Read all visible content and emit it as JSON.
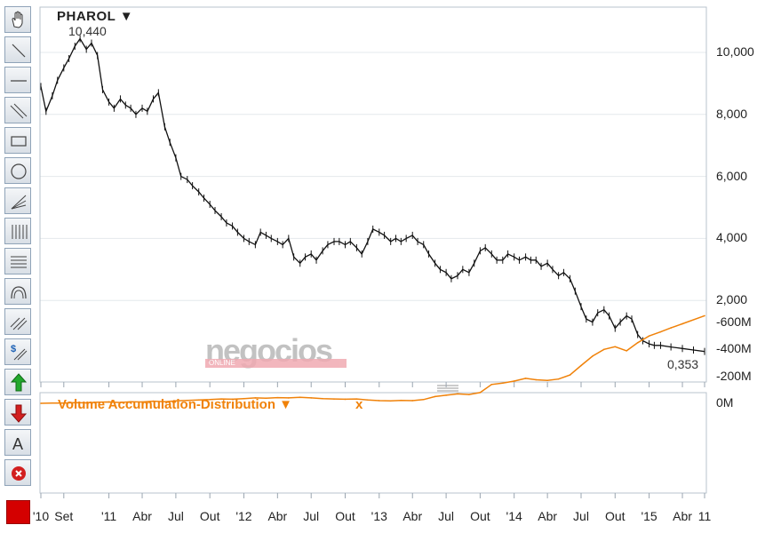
{
  "toolbar": {
    "tools": [
      {
        "name": "hand-tool",
        "icon": "hand-icon"
      },
      {
        "name": "line-tool",
        "icon": "diagonal-line-icon"
      },
      {
        "name": "horizontal-line-tool",
        "icon": "horizontal-line-icon"
      },
      {
        "name": "channel-tool",
        "icon": "parallel-lines-icon"
      },
      {
        "name": "rectangle-tool",
        "icon": "rectangle-icon"
      },
      {
        "name": "circle-tool",
        "icon": "circle-icon"
      },
      {
        "name": "fan-tool",
        "icon": "fan-lines-icon"
      },
      {
        "name": "vertical-grid-tool",
        "icon": "vertical-grid-icon"
      },
      {
        "name": "horizontal-grid-tool",
        "icon": "horizontal-grid-icon"
      },
      {
        "name": "arc-tool",
        "icon": "arc-icon"
      },
      {
        "name": "gann-tool",
        "icon": "diagonal-grid-icon"
      },
      {
        "name": "speed-lines-tool",
        "icon": "dollar-lines-icon"
      },
      {
        "name": "buy-arrow-tool",
        "icon": "green-up-arrow-icon"
      },
      {
        "name": "sell-arrow-tool",
        "icon": "red-down-arrow-icon"
      },
      {
        "name": "text-tool",
        "icon": "letter-a-icon",
        "label": "A"
      },
      {
        "name": "delete-tool",
        "icon": "delete-circle-icon"
      }
    ],
    "color_swatch": "#d40000"
  },
  "header": {
    "symbol": "PHAROL ▼",
    "high_label": "10,440",
    "low_label": "0,353"
  },
  "indicator": {
    "name": "Volume Accumulation-Distribution ▼",
    "close": "x"
  },
  "watermark": {
    "brand": "negocios",
    "sub": "ONLINE"
  },
  "chart_data": [
    {
      "type": "line",
      "series": [
        {
          "values": [
            {
              "x": "2010-07-01",
              "y": 8.9
            },
            {
              "x": "2010-07-15",
              "y": 8.1
            },
            {
              "x": "2010-08-01",
              "y": 8.6
            },
            {
              "x": "2010-08-15",
              "y": 9.1
            },
            {
              "x": "2010-09-01",
              "y": 9.5
            },
            {
              "x": "2010-09-15",
              "y": 9.8
            },
            {
              "x": "2010-10-01",
              "y": 10.2
            },
            {
              "x": "2010-10-15",
              "y": 10.44
            },
            {
              "x": "2010-11-01",
              "y": 10.1
            },
            {
              "x": "2010-11-15",
              "y": 10.3
            },
            {
              "x": "2010-12-01",
              "y": 9.9
            },
            {
              "x": "2010-12-15",
              "y": 8.8
            },
            {
              "x": "2011-01-01",
              "y": 8.4
            },
            {
              "x": "2011-01-15",
              "y": 8.2
            },
            {
              "x": "2011-02-01",
              "y": 8.5
            },
            {
              "x": "2011-02-15",
              "y": 8.3
            },
            {
              "x": "2011-03-01",
              "y": 8.2
            },
            {
              "x": "2011-03-15",
              "y": 8.0
            },
            {
              "x": "2011-04-01",
              "y": 8.2
            },
            {
              "x": "2011-04-15",
              "y": 8.1
            },
            {
              "x": "2011-05-01",
              "y": 8.5
            },
            {
              "x": "2011-05-15",
              "y": 8.7
            },
            {
              "x": "2011-06-01",
              "y": 7.6
            },
            {
              "x": "2011-06-15",
              "y": 7.1
            },
            {
              "x": "2011-07-01",
              "y": 6.6
            },
            {
              "x": "2011-07-15",
              "y": 6.0
            },
            {
              "x": "2011-08-01",
              "y": 5.9
            },
            {
              "x": "2011-08-15",
              "y": 5.7
            },
            {
              "x": "2011-09-01",
              "y": 5.5
            },
            {
              "x": "2011-09-15",
              "y": 5.3
            },
            {
              "x": "2011-10-01",
              "y": 5.1
            },
            {
              "x": "2011-10-15",
              "y": 4.9
            },
            {
              "x": "2011-11-01",
              "y": 4.7
            },
            {
              "x": "2011-11-15",
              "y": 4.5
            },
            {
              "x": "2011-12-01",
              "y": 4.4
            },
            {
              "x": "2011-12-15",
              "y": 4.2
            },
            {
              "x": "2012-01-01",
              "y": 4.0
            },
            {
              "x": "2012-01-15",
              "y": 3.9
            },
            {
              "x": "2012-02-01",
              "y": 3.8
            },
            {
              "x": "2012-02-15",
              "y": 4.2
            },
            {
              "x": "2012-03-01",
              "y": 4.1
            },
            {
              "x": "2012-03-15",
              "y": 4.0
            },
            {
              "x": "2012-04-01",
              "y": 3.9
            },
            {
              "x": "2012-04-15",
              "y": 3.8
            },
            {
              "x": "2012-05-01",
              "y": 4.0
            },
            {
              "x": "2012-05-15",
              "y": 3.4
            },
            {
              "x": "2012-06-01",
              "y": 3.2
            },
            {
              "x": "2012-06-15",
              "y": 3.4
            },
            {
              "x": "2012-07-01",
              "y": 3.5
            },
            {
              "x": "2012-07-15",
              "y": 3.3
            },
            {
              "x": "2012-08-01",
              "y": 3.6
            },
            {
              "x": "2012-08-15",
              "y": 3.8
            },
            {
              "x": "2012-09-01",
              "y": 3.9
            },
            {
              "x": "2012-09-15",
              "y": 3.9
            },
            {
              "x": "2012-10-01",
              "y": 3.8
            },
            {
              "x": "2012-10-15",
              "y": 3.9
            },
            {
              "x": "2012-11-01",
              "y": 3.7
            },
            {
              "x": "2012-11-15",
              "y": 3.5
            },
            {
              "x": "2012-12-01",
              "y": 3.9
            },
            {
              "x": "2012-12-15",
              "y": 4.3
            },
            {
              "x": "2013-01-01",
              "y": 4.2
            },
            {
              "x": "2013-01-15",
              "y": 4.1
            },
            {
              "x": "2013-02-01",
              "y": 3.9
            },
            {
              "x": "2013-02-15",
              "y": 4.0
            },
            {
              "x": "2013-03-01",
              "y": 3.9
            },
            {
              "x": "2013-03-15",
              "y": 4.0
            },
            {
              "x": "2013-04-01",
              "y": 4.1
            },
            {
              "x": "2013-04-15",
              "y": 3.9
            },
            {
              "x": "2013-05-01",
              "y": 3.8
            },
            {
              "x": "2013-05-15",
              "y": 3.5
            },
            {
              "x": "2013-06-01",
              "y": 3.2
            },
            {
              "x": "2013-06-15",
              "y": 3.0
            },
            {
              "x": "2013-07-01",
              "y": 2.9
            },
            {
              "x": "2013-07-15",
              "y": 2.7
            },
            {
              "x": "2013-08-01",
              "y": 2.8
            },
            {
              "x": "2013-08-15",
              "y": 3.0
            },
            {
              "x": "2013-09-01",
              "y": 2.9
            },
            {
              "x": "2013-09-15",
              "y": 3.2
            },
            {
              "x": "2013-10-01",
              "y": 3.6
            },
            {
              "x": "2013-10-15",
              "y": 3.7
            },
            {
              "x": "2013-11-01",
              "y": 3.5
            },
            {
              "x": "2013-11-15",
              "y": 3.3
            },
            {
              "x": "2013-12-01",
              "y": 3.3
            },
            {
              "x": "2013-12-15",
              "y": 3.5
            },
            {
              "x": "2014-01-01",
              "y": 3.4
            },
            {
              "x": "2014-01-15",
              "y": 3.3
            },
            {
              "x": "2014-02-01",
              "y": 3.4
            },
            {
              "x": "2014-02-15",
              "y": 3.3
            },
            {
              "x": "2014-03-01",
              "y": 3.3
            },
            {
              "x": "2014-03-15",
              "y": 3.1
            },
            {
              "x": "2014-04-01",
              "y": 3.2
            },
            {
              "x": "2014-04-15",
              "y": 3.0
            },
            {
              "x": "2014-05-01",
              "y": 2.8
            },
            {
              "x": "2014-05-15",
              "y": 2.9
            },
            {
              "x": "2014-06-01",
              "y": 2.7
            },
            {
              "x": "2014-06-15",
              "y": 2.3
            },
            {
              "x": "2014-07-01",
              "y": 1.8
            },
            {
              "x": "2014-07-15",
              "y": 1.4
            },
            {
              "x": "2014-08-01",
              "y": 1.3
            },
            {
              "x": "2014-08-15",
              "y": 1.6
            },
            {
              "x": "2014-09-01",
              "y": 1.7
            },
            {
              "x": "2014-09-15",
              "y": 1.5
            },
            {
              "x": "2014-10-01",
              "y": 1.1
            },
            {
              "x": "2014-10-15",
              "y": 1.3
            },
            {
              "x": "2014-11-01",
              "y": 1.5
            },
            {
              "x": "2014-11-15",
              "y": 1.4
            },
            {
              "x": "2014-12-01",
              "y": 0.9
            },
            {
              "x": "2014-12-15",
              "y": 0.7
            },
            {
              "x": "2015-01-01",
              "y": 0.6
            },
            {
              "x": "2015-01-15",
              "y": 0.55
            },
            {
              "x": "2015-02-01",
              "y": 0.55
            },
            {
              "x": "2015-03-01",
              "y": 0.5
            },
            {
              "x": "2015-04-01",
              "y": 0.45
            },
            {
              "x": "2015-05-01",
              "y": 0.4
            },
            {
              "x": "2015-05-31",
              "y": 0.353
            }
          ]
        }
      ],
      "yticks": [
        {
          "v": 10000,
          "label": "10,000"
        },
        {
          "v": 8000,
          "label": "8,000"
        },
        {
          "v": 6000,
          "label": "6,000"
        },
        {
          "v": 4000,
          "label": "4,000"
        },
        {
          "v": 2000,
          "label": "2,000"
        }
      ],
      "ylim": [
        0,
        11000
      ],
      "grid": true
    },
    {
      "type": "line",
      "series": [
        {
          "values": [
            {
              "x": "2010-07-01",
              "y": 0
            },
            {
              "x": "2010-08-01",
              "y": -2
            },
            {
              "x": "2010-09-01",
              "y": -1
            },
            {
              "x": "2010-10-01",
              "y": -5
            },
            {
              "x": "2010-11-01",
              "y": -3
            },
            {
              "x": "2010-12-01",
              "y": -8
            },
            {
              "x": "2011-01-01",
              "y": -10
            },
            {
              "x": "2011-02-01",
              "y": -6
            },
            {
              "x": "2011-03-01",
              "y": -12
            },
            {
              "x": "2011-04-01",
              "y": -10
            },
            {
              "x": "2011-05-01",
              "y": -16
            },
            {
              "x": "2011-06-01",
              "y": -12
            },
            {
              "x": "2011-07-01",
              "y": -18
            },
            {
              "x": "2011-08-01",
              "y": -22
            },
            {
              "x": "2011-09-01",
              "y": -25
            },
            {
              "x": "2011-10-01",
              "y": -28
            },
            {
              "x": "2011-11-01",
              "y": -32
            },
            {
              "x": "2011-12-01",
              "y": -30
            },
            {
              "x": "2012-01-01",
              "y": -35
            },
            {
              "x": "2012-02-01",
              "y": -40
            },
            {
              "x": "2012-03-01",
              "y": -38
            },
            {
              "x": "2012-04-01",
              "y": -42
            },
            {
              "x": "2012-05-01",
              "y": -40
            },
            {
              "x": "2012-06-01",
              "y": -45
            },
            {
              "x": "2012-07-01",
              "y": -40
            },
            {
              "x": "2012-08-01",
              "y": -35
            },
            {
              "x": "2012-09-01",
              "y": -32
            },
            {
              "x": "2012-10-01",
              "y": -30
            },
            {
              "x": "2012-11-01",
              "y": -32
            },
            {
              "x": "2012-12-01",
              "y": -25
            },
            {
              "x": "2013-01-01",
              "y": -20
            },
            {
              "x": "2013-02-01",
              "y": -18
            },
            {
              "x": "2013-03-01",
              "y": -22
            },
            {
              "x": "2013-04-01",
              "y": -20
            },
            {
              "x": "2013-05-01",
              "y": -28
            },
            {
              "x": "2013-06-01",
              "y": -50
            },
            {
              "x": "2013-07-01",
              "y": -60
            },
            {
              "x": "2013-08-01",
              "y": -70
            },
            {
              "x": "2013-09-01",
              "y": -65
            },
            {
              "x": "2013-10-01",
              "y": -80
            },
            {
              "x": "2013-11-01",
              "y": -140
            },
            {
              "x": "2013-12-01",
              "y": -150
            },
            {
              "x": "2014-01-01",
              "y": -165
            },
            {
              "x": "2014-02-01",
              "y": -185
            },
            {
              "x": "2014-03-01",
              "y": -175
            },
            {
              "x": "2014-04-01",
              "y": -170
            },
            {
              "x": "2014-05-01",
              "y": -180
            },
            {
              "x": "2014-06-01",
              "y": -210
            },
            {
              "x": "2014-07-01",
              "y": -280
            },
            {
              "x": "2014-08-01",
              "y": -350
            },
            {
              "x": "2014-09-01",
              "y": -400
            },
            {
              "x": "2014-10-01",
              "y": -420
            },
            {
              "x": "2014-11-01",
              "y": -390
            },
            {
              "x": "2014-12-01",
              "y": -450
            },
            {
              "x": "2015-01-01",
              "y": -500
            },
            {
              "x": "2015-02-01",
              "y": -530
            },
            {
              "x": "2015-03-01",
              "y": -560
            },
            {
              "x": "2015-04-01",
              "y": -590
            },
            {
              "x": "2015-05-31",
              "y": -650
            }
          ]
        }
      ],
      "yticks": [
        {
          "v": 0,
          "label": "0M"
        },
        {
          "v": -200,
          "label": "-200M"
        },
        {
          "v": -400,
          "label": "-400M"
        },
        {
          "v": -600,
          "label": "-600M"
        }
      ],
      "ylim": [
        -660,
        0
      ],
      "color": "#f0820a"
    }
  ],
  "xticks": [
    {
      "date": "2010-07-01",
      "label": "'10"
    },
    {
      "date": "2010-09-01",
      "label": "Set"
    },
    {
      "date": "2011-01-01",
      "label": "'11"
    },
    {
      "date": "2011-04-01",
      "label": "Abr"
    },
    {
      "date": "2011-07-01",
      "label": "Jul"
    },
    {
      "date": "2011-10-01",
      "label": "Out"
    },
    {
      "date": "2012-01-01",
      "label": "'12"
    },
    {
      "date": "2012-04-01",
      "label": "Abr"
    },
    {
      "date": "2012-07-01",
      "label": "Jul"
    },
    {
      "date": "2012-10-01",
      "label": "Out"
    },
    {
      "date": "2013-01-01",
      "label": "'13"
    },
    {
      "date": "2013-04-01",
      "label": "Abr"
    },
    {
      "date": "2013-07-01",
      "label": "Jul"
    },
    {
      "date": "2013-10-01",
      "label": "Out"
    },
    {
      "date": "2014-01-01",
      "label": "'14"
    },
    {
      "date": "2014-04-01",
      "label": "Abr"
    },
    {
      "date": "2014-07-01",
      "label": "Jul"
    },
    {
      "date": "2014-10-01",
      "label": "Out"
    },
    {
      "date": "2015-01-01",
      "label": "'15"
    },
    {
      "date": "2015-04-01",
      "label": "Abr"
    },
    {
      "date": "2015-05-31",
      "label": "11"
    }
  ]
}
